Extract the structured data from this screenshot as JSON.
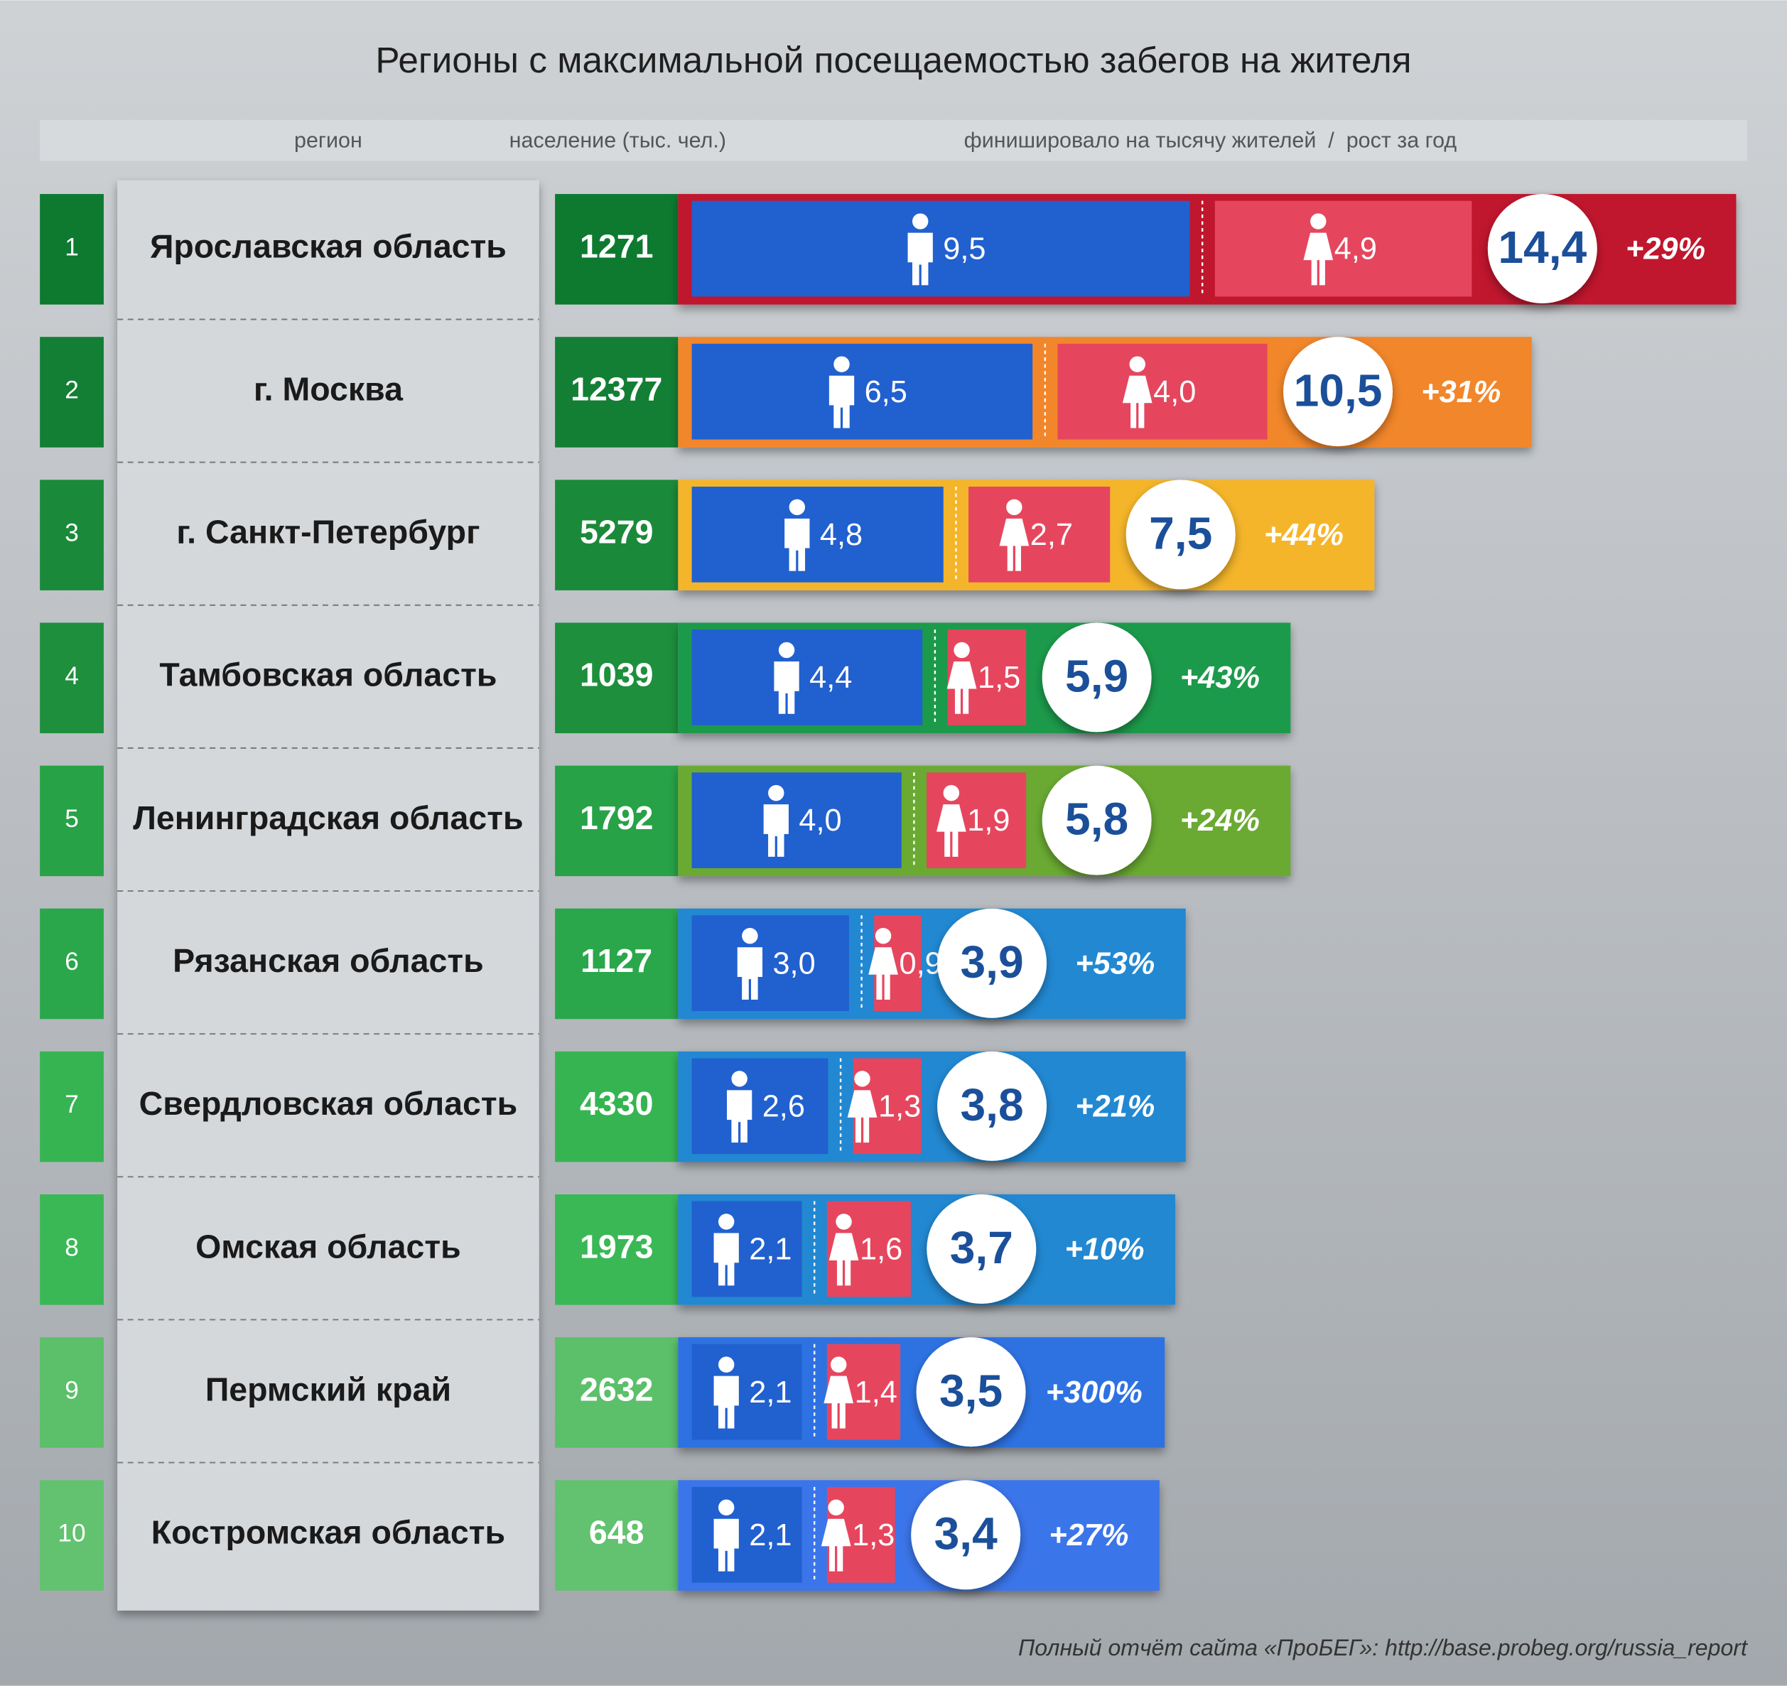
{
  "chart_data": {
    "type": "bar",
    "stacked": true,
    "title": "Регионы с максимальной посещаемостью забегов на жителя",
    "column_labels": [
      "регион",
      "население (тыс. чел.)",
      "финишировало на тысячу жителей  /  рост за год"
    ],
    "ranks": [
      1,
      2,
      3,
      4,
      5,
      6,
      7,
      8,
      9,
      10
    ],
    "categories": [
      "Ярославская область",
      "г. Москва",
      "г. Санкт-Петербург",
      "Тамбовская область",
      "Ленинградская область",
      "Рязанская область",
      "Свердловская область",
      "Омская область",
      "Пермский край",
      "Костромская область"
    ],
    "population": [
      1271,
      12377,
      5279,
      1039,
      1792,
      1127,
      4330,
      1973,
      2632,
      648
    ],
    "series": [
      {
        "color": "#2160cf",
        "values": [
          9.5,
          6.5,
          4.8,
          4.4,
          4.0,
          3.0,
          2.6,
          2.1,
          2.1,
          2.1
        ],
        "value_labels": [
          "9,5",
          "6,5",
          "4,8",
          "4,4",
          "4,0",
          "3,0",
          "2,6",
          "2,1",
          "2,1",
          "2,1"
        ]
      },
      {
        "color": "#e5465e",
        "values": [
          4.9,
          4.0,
          2.7,
          1.5,
          1.9,
          0.9,
          1.3,
          1.6,
          1.4,
          1.3
        ],
        "value_labels": [
          "4,9",
          "4,0",
          "2,7",
          "1,5",
          "1,9",
          "0,9",
          "1,3",
          "1,6",
          "1,4",
          "1,3"
        ]
      }
    ],
    "totals": {
      "values": [
        14.4,
        10.5,
        7.5,
        5.9,
        5.8,
        3.9,
        3.8,
        3.7,
        3.5,
        3.4
      ],
      "value_labels": [
        "14,4",
        "10,5",
        "7,5",
        "5,9",
        "5,8",
        "3,9",
        "3,8",
        "3,7",
        "3,5",
        "3,4"
      ]
    },
    "growth": {
      "values": [
        29,
        31,
        44,
        43,
        24,
        53,
        21,
        10,
        300,
        27
      ],
      "value_labels": [
        "+29%",
        "+31%",
        "+44%",
        "+43%",
        "+24%",
        "+53%",
        "+21%",
        "+10%",
        "+300%",
        "+27%"
      ]
    },
    "row_colors": [
      "#c0142f",
      "#f2862a",
      "#f5b52a",
      "#1c9a4c",
      "#6aaa32",
      "#2288d2",
      "#2288d2",
      "#2288d2",
      "#2f72e2",
      "#3a74ea"
    ],
    "rank_colors": [
      "#0d7a30",
      "#137f34",
      "#1a8a3a",
      "#1e8f3d",
      "#27a247",
      "#2aa74a",
      "#36b452",
      "#3ab856",
      "#5cbf6a",
      "#62c26f"
    ],
    "source": "Полный отчёт сайта «ПроБЕГ»: http://base.probeg.org/russia_report"
  }
}
